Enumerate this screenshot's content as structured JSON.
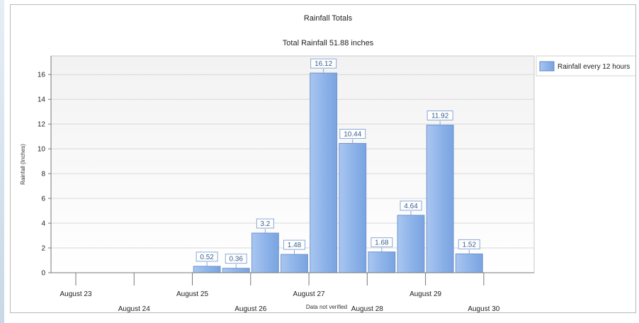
{
  "chart_data": {
    "type": "bar",
    "title": "Rainfall Totals",
    "subtitle": "Total Rainfall 51.88 inches",
    "ylabel": "Rainfall (Inches)",
    "xlabel": "",
    "footer": "Data not verified",
    "ylim": [
      0,
      17.5
    ],
    "yticks": [
      0,
      2,
      4,
      6,
      8,
      10,
      12,
      14,
      16
    ],
    "grid": true,
    "legend_position": "top-right",
    "x_range": [
      0,
      15
    ],
    "x_ticks": [
      {
        "x": 0,
        "label": "August 23"
      },
      {
        "x": 2,
        "label": "August 24"
      },
      {
        "x": 4,
        "label": "August 25"
      },
      {
        "x": 6,
        "label": "August 26"
      },
      {
        "x": 8,
        "label": "August 27"
      },
      {
        "x": 10,
        "label": "August 28"
      },
      {
        "x": 12,
        "label": "August 29"
      },
      {
        "x": 14,
        "label": "August 30"
      }
    ],
    "series": [
      {
        "name": "Rainfall every 12 hours",
        "color": "#8fb4ea",
        "points": [
          {
            "x": 4.5,
            "value": 0.52,
            "label": "0.52"
          },
          {
            "x": 5.5,
            "value": 0.36,
            "label": "0.36"
          },
          {
            "x": 6.5,
            "value": 3.2,
            "label": "3.2"
          },
          {
            "x": 7.5,
            "value": 1.48,
            "label": "1.48"
          },
          {
            "x": 8.5,
            "value": 16.12,
            "label": "16.12"
          },
          {
            "x": 9.5,
            "value": 10.44,
            "label": "10.44"
          },
          {
            "x": 10.5,
            "value": 1.68,
            "label": "1.68"
          },
          {
            "x": 11.5,
            "value": 4.64,
            "label": "4.64"
          },
          {
            "x": 12.5,
            "value": 11.92,
            "label": "11.92"
          },
          {
            "x": 13.5,
            "value": 1.52,
            "label": "1.52"
          }
        ]
      }
    ]
  }
}
